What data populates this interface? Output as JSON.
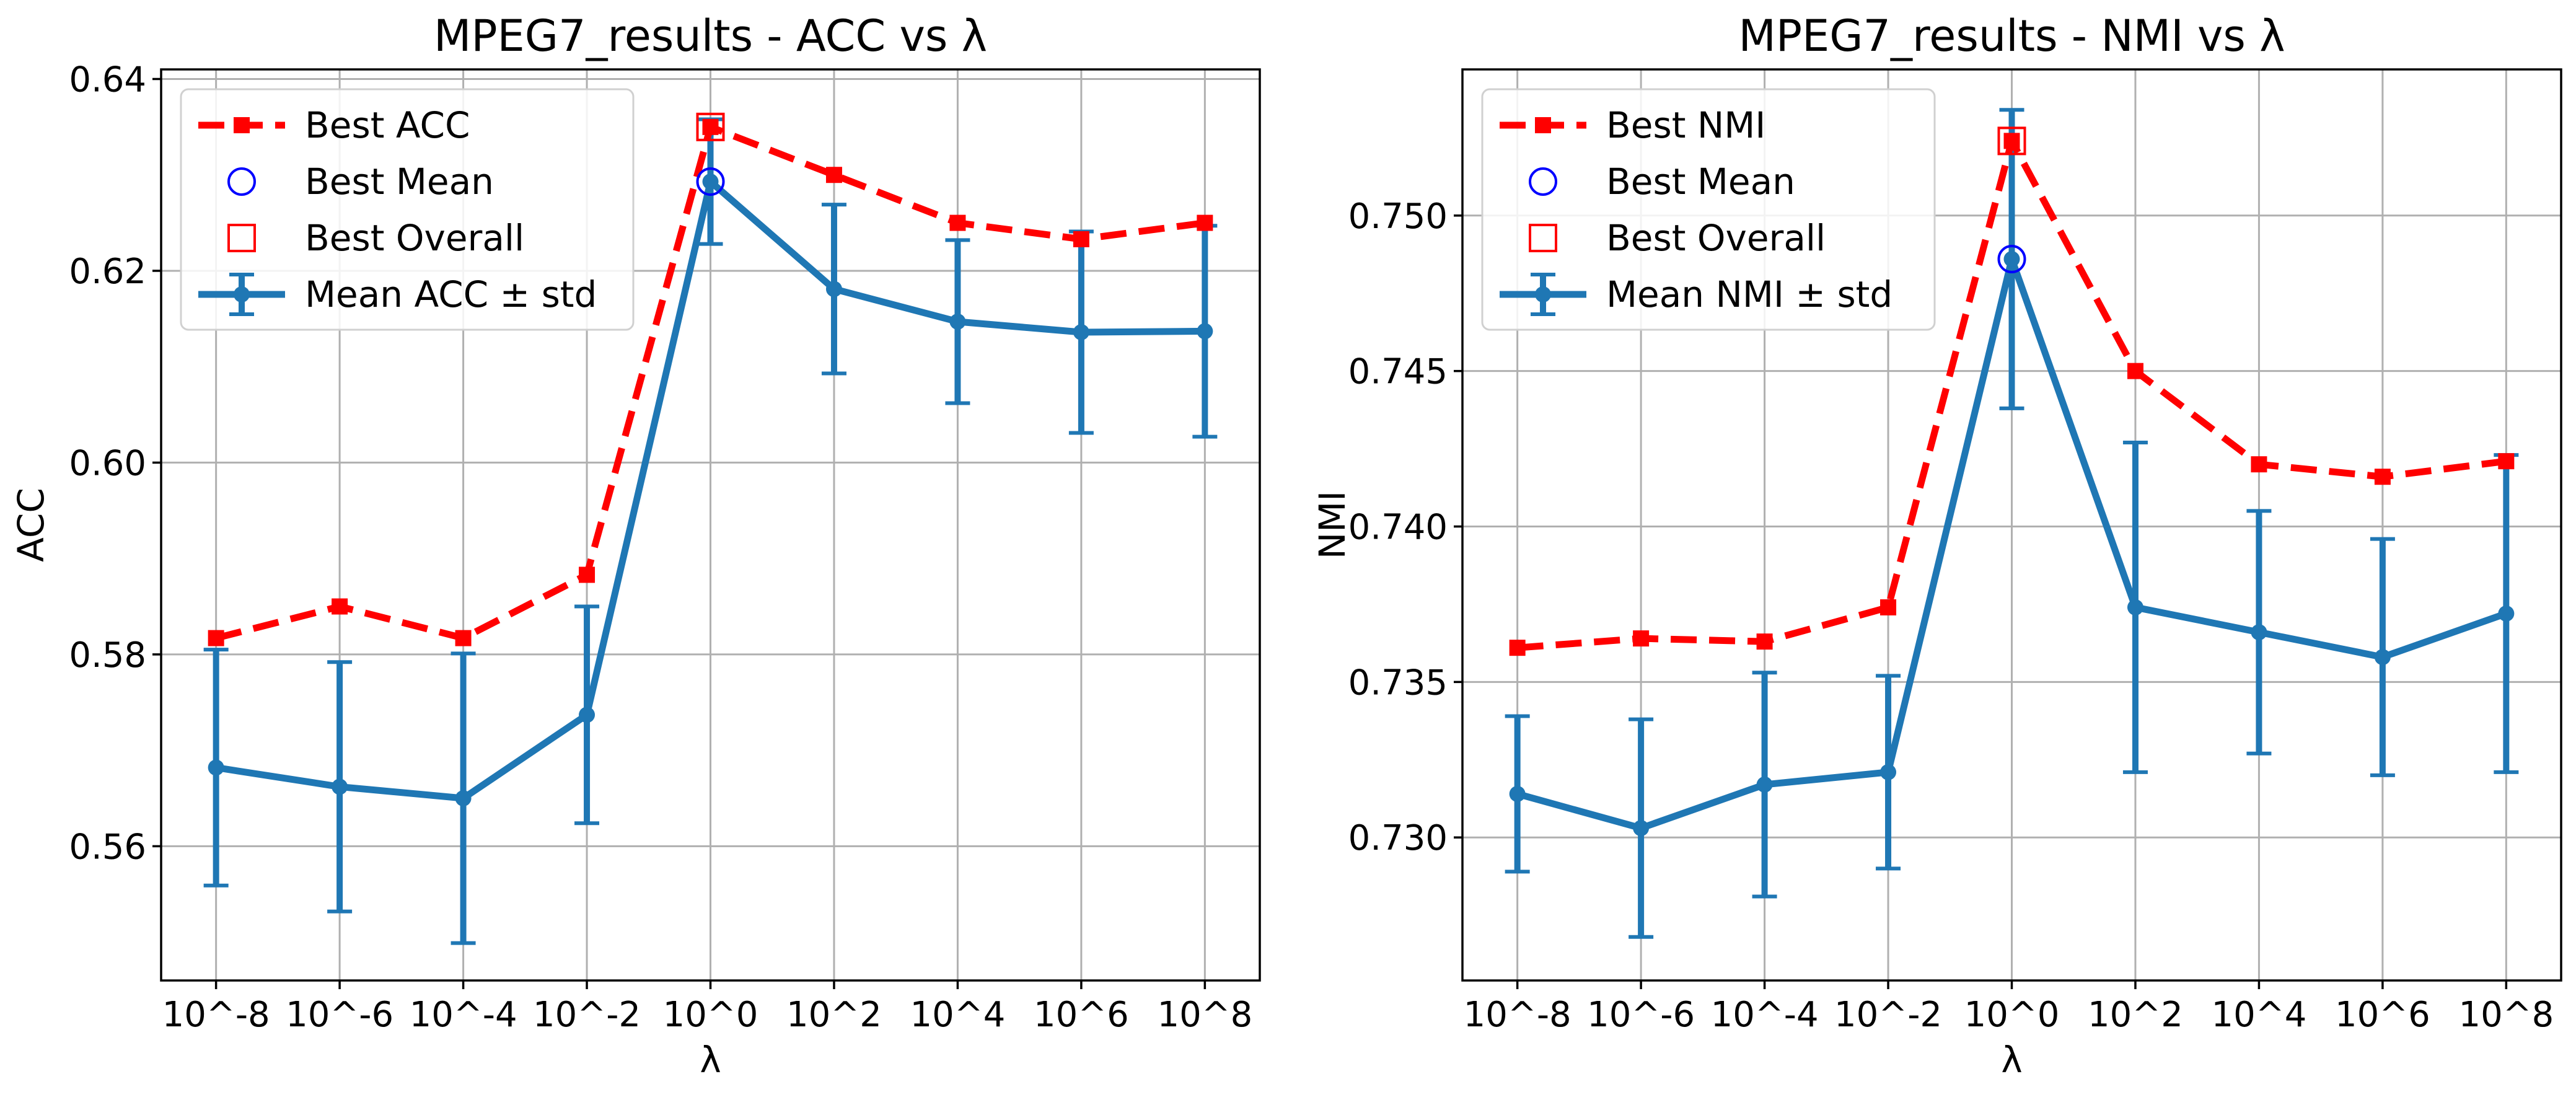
{
  "chart_data": [
    {
      "type": "line",
      "title": "MPEG7_results - ACC vs λ",
      "xlabel": "λ",
      "ylabel": "ACC",
      "categories": [
        "10^-8",
        "10^-6",
        "10^-4",
        "10^-2",
        "10^0",
        "10^2",
        "10^4",
        "10^6",
        "10^8"
      ],
      "ylim": [
        0.546,
        0.641
      ],
      "yticks": [
        0.56,
        0.58,
        0.6,
        0.62,
        0.64
      ],
      "ytick_labels": [
        "0.56",
        "0.58",
        "0.60",
        "0.62",
        "0.64"
      ],
      "grid": true,
      "legend_position": "upper-left",
      "series": [
        {
          "name": "Best ACC",
          "style": "dashed-square",
          "color": "#ff0000",
          "values": [
            0.5817,
            0.585,
            0.5817,
            0.5883,
            0.635,
            0.63,
            0.625,
            0.6233,
            0.625
          ]
        },
        {
          "name": "Mean ACC ± std",
          "style": "solid-errorbar",
          "color": "#1f77b4",
          "values": [
            0.5682,
            0.5662,
            0.565,
            0.5737,
            0.6293,
            0.6181,
            0.6147,
            0.6136,
            0.6137
          ],
          "std": [
            0.0123,
            0.013,
            0.0151,
            0.0113,
            0.0065,
            0.0088,
            0.0085,
            0.0105,
            0.011
          ]
        }
      ],
      "markers": [
        {
          "name": "Best Mean",
          "shape": "circle",
          "color": "#0000ff",
          "x": "10^0",
          "y": 0.6293
        },
        {
          "name": "Best Overall",
          "shape": "square",
          "color": "#ff0000",
          "x": "10^0",
          "y": 0.635
        }
      ]
    },
    {
      "type": "line",
      "title": "MPEG7_results - NMI vs λ",
      "xlabel": "λ",
      "ylabel": "NMI",
      "categories": [
        "10^-8",
        "10^-6",
        "10^-4",
        "10^-2",
        "10^0",
        "10^2",
        "10^4",
        "10^6",
        "10^8"
      ],
      "ylim": [
        0.7254,
        0.7547
      ],
      "yticks": [
        0.73,
        0.735,
        0.74,
        0.745,
        0.75
      ],
      "ytick_labels": [
        "0.730",
        "0.735",
        "0.740",
        "0.745",
        "0.750"
      ],
      "grid": true,
      "legend_position": "upper-left",
      "series": [
        {
          "name": "Best NMI",
          "style": "dashed-square",
          "color": "#ff0000",
          "values": [
            0.7361,
            0.7364,
            0.7363,
            0.7374,
            0.7524,
            0.745,
            0.742,
            0.7416,
            0.7421
          ]
        },
        {
          "name": "Mean NMI ± std",
          "style": "solid-errorbar",
          "color": "#1f77b4",
          "values": [
            0.7314,
            0.7303,
            0.7317,
            0.7321,
            0.7486,
            0.7374,
            0.7366,
            0.7358,
            0.7372
          ],
          "std": [
            0.0025,
            0.0035,
            0.0036,
            0.0031,
            0.0048,
            0.0053,
            0.0039,
            0.0038,
            0.0051
          ]
        }
      ],
      "markers": [
        {
          "name": "Best Mean",
          "shape": "circle",
          "color": "#0000ff",
          "x": "10^0",
          "y": 0.7486
        },
        {
          "name": "Best Overall",
          "shape": "square",
          "color": "#ff0000",
          "x": "10^0",
          "y": 0.7524
        }
      ]
    }
  ]
}
